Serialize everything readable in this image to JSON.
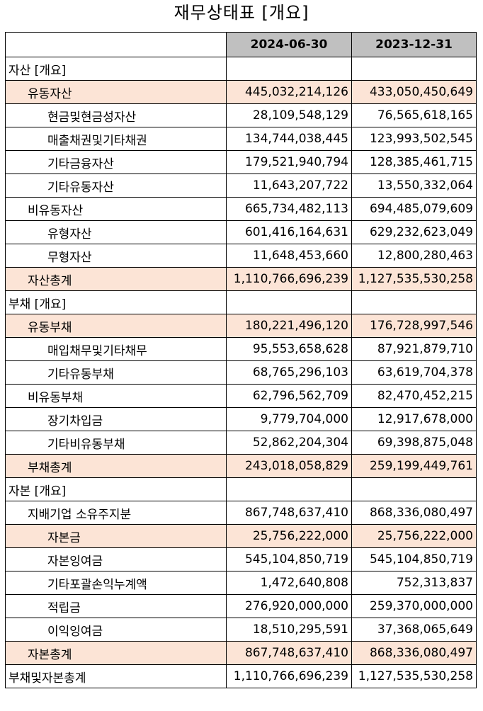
{
  "title": "재무상태표 [개요]",
  "columns": [
    "2024-06-30",
    "2023-12-31"
  ],
  "rows": [
    {
      "label": "자산 [개요]",
      "level": 0,
      "v1": "",
      "v2": "",
      "hl": false
    },
    {
      "label": "유동자산",
      "level": 1,
      "v1": "445,032,214,126",
      "v2": "433,050,450,649",
      "hl": true
    },
    {
      "label": "현금및현금성자산",
      "level": 2,
      "v1": "28,109,548,129",
      "v2": "76,565,618,165",
      "hl": false
    },
    {
      "label": "매출채권및기타채권",
      "level": 2,
      "v1": "134,744,038,445",
      "v2": "123,993,502,545",
      "hl": false
    },
    {
      "label": "기타금융자산",
      "level": 2,
      "v1": "179,521,940,794",
      "v2": "128,385,461,715",
      "hl": false
    },
    {
      "label": "기타유동자산",
      "level": 2,
      "v1": "11,643,207,722",
      "v2": "13,550,332,064",
      "hl": false
    },
    {
      "label": "비유동자산",
      "level": 1,
      "v1": "665,734,482,113",
      "v2": "694,485,079,609",
      "hl": false
    },
    {
      "label": "유형자산",
      "level": 2,
      "v1": "601,416,164,631",
      "v2": "629,232,623,049",
      "hl": false
    },
    {
      "label": "무형자산",
      "level": 2,
      "v1": "11,648,453,660",
      "v2": "12,800,280,463",
      "hl": false
    },
    {
      "label": "자산총계",
      "level": 1,
      "v1": "1,110,766,696,239",
      "v2": "1,127,535,530,258",
      "hl": true
    },
    {
      "label": "부채 [개요]",
      "level": 0,
      "v1": "",
      "v2": "",
      "hl": false
    },
    {
      "label": "유동부채",
      "level": 1,
      "v1": "180,221,496,120",
      "v2": "176,728,997,546",
      "hl": true
    },
    {
      "label": "매입채무및기타채무",
      "level": 2,
      "v1": "95,553,658,628",
      "v2": "87,921,879,710",
      "hl": false
    },
    {
      "label": "기타유동부채",
      "level": 2,
      "v1": "68,765,296,103",
      "v2": "63,619,704,378",
      "hl": false
    },
    {
      "label": "비유동부채",
      "level": 1,
      "v1": "62,796,562,709",
      "v2": "82,470,452,215",
      "hl": false
    },
    {
      "label": "장기차입금",
      "level": 2,
      "v1": "9,779,704,000",
      "v2": "12,917,678,000",
      "hl": false
    },
    {
      "label": "기타비유동부채",
      "level": 2,
      "v1": "52,862,204,304",
      "v2": "69,398,875,048",
      "hl": false
    },
    {
      "label": "부채총계",
      "level": 1,
      "v1": "243,018,058,829",
      "v2": "259,199,449,761",
      "hl": true
    },
    {
      "label": "자본 [개요]",
      "level": 0,
      "v1": "",
      "v2": "",
      "hl": false
    },
    {
      "label": "지배기업 소유주지분",
      "level": 1,
      "v1": "867,748,637,410",
      "v2": "868,336,080,497",
      "hl": false
    },
    {
      "label": "자본금",
      "level": 2,
      "v1": "25,756,222,000",
      "v2": "25,756,222,000",
      "hl": true
    },
    {
      "label": "자본잉여금",
      "level": 2,
      "v1": "545,104,850,719",
      "v2": "545,104,850,719",
      "hl": false
    },
    {
      "label": "기타포괄손익누계액",
      "level": 2,
      "v1": "1,472,640,808",
      "v2": "752,313,837",
      "hl": false
    },
    {
      "label": "적립금",
      "level": 2,
      "v1": "276,920,000,000",
      "v2": "259,370,000,000",
      "hl": false
    },
    {
      "label": "이익잉여금",
      "level": 2,
      "v1": "18,510,295,591",
      "v2": "37,368,065,649",
      "hl": false
    },
    {
      "label": "자본총계",
      "level": 1,
      "v1": "867,748,637,410",
      "v2": "868,336,080,497",
      "hl": true
    },
    {
      "label": "부채및자본총계",
      "level": 0,
      "v1": "1,110,766,696,239",
      "v2": "1,127,535,530,258",
      "hl": false
    }
  ]
}
